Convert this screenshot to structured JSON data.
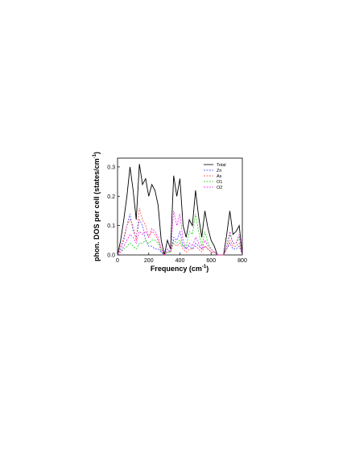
{
  "chart_data": {
    "type": "line",
    "x_label": [
      "Frequency (cm",
      "-1",
      ")"
    ],
    "y_label": [
      "phon. DOS per cell (states/cm",
      "-1",
      ")"
    ],
    "x": [
      0,
      20,
      40,
      60,
      80,
      100,
      120,
      140,
      160,
      180,
      200,
      220,
      240,
      260,
      280,
      300,
      320,
      340,
      360,
      380,
      400,
      420,
      440,
      460,
      480,
      500,
      520,
      540,
      560,
      580,
      600,
      620,
      640,
      660,
      680,
      700,
      720,
      740,
      760,
      780,
      800
    ],
    "series": [
      {
        "name": "Total",
        "color": "#000000",
        "style": "solid",
        "values": [
          0,
          0.05,
          0.12,
          0.2,
          0.3,
          0.22,
          0.12,
          0.31,
          0.24,
          0.26,
          0.2,
          0.24,
          0.22,
          0.17,
          0.05,
          0,
          0.05,
          0.02,
          0.27,
          0.2,
          0.26,
          0.1,
          0.06,
          0.12,
          0.1,
          0.22,
          0.13,
          0.06,
          0.15,
          0.09,
          0.05,
          0.03,
          0,
          0,
          0,
          0.07,
          0.15,
          0.07,
          0.08,
          0.1,
          0
        ]
      },
      {
        "name": "Zn",
        "color": "#3333ff",
        "style": "dashed",
        "values": [
          0,
          0.02,
          0.05,
          0.1,
          0.14,
          0.08,
          0.06,
          0.12,
          0.1,
          0.05,
          0.03,
          0.03,
          0.02,
          0.02,
          0.01,
          0,
          0.02,
          0.01,
          0.06,
          0.05,
          0.08,
          0.03,
          0.02,
          0.03,
          0.02,
          0.04,
          0.03,
          0.02,
          0.03,
          0.02,
          0.01,
          0.01,
          0,
          0,
          0,
          0.02,
          0.04,
          0.02,
          0.02,
          0.03,
          0
        ]
      },
      {
        "name": "As",
        "color": "#ff3333",
        "style": "dashed",
        "values": [
          0,
          0.03,
          0.06,
          0.1,
          0.12,
          0.1,
          0.05,
          0.16,
          0.12,
          0.1,
          0.06,
          0.08,
          0.07,
          0.05,
          0.02,
          0,
          0.01,
          0.01,
          0.04,
          0.03,
          0.04,
          0.02,
          0.01,
          0.02,
          0.02,
          0.03,
          0.02,
          0.01,
          0.03,
          0.02,
          0.01,
          0.01,
          0,
          0,
          0,
          0.02,
          0.05,
          0.03,
          0.03,
          0.04,
          0
        ]
      },
      {
        "name": "O1",
        "color": "#00cc00",
        "style": "dashed",
        "values": [
          0,
          0.01,
          0.02,
          0.03,
          0.04,
          0.03,
          0.02,
          0.04,
          0.04,
          0.05,
          0.04,
          0.05,
          0.05,
          0.04,
          0.01,
          0,
          0.01,
          0.01,
          0.05,
          0.04,
          0.05,
          0.03,
          0.03,
          0.08,
          0.07,
          0.14,
          0.08,
          0.03,
          0.08,
          0.04,
          0.02,
          0.01,
          0,
          0,
          0,
          0.03,
          0.07,
          0.04,
          0.04,
          0.06,
          0
        ]
      },
      {
        "name": "O2",
        "color": "#ee00ee",
        "style": "dashed",
        "values": [
          0,
          0.01,
          0.03,
          0.05,
          0.07,
          0.06,
          0.04,
          0.08,
          0.07,
          0.08,
          0.06,
          0.09,
          0.08,
          0.06,
          0.02,
          0,
          0.02,
          0.01,
          0.15,
          0.1,
          0.14,
          0.05,
          0.02,
          0.04,
          0.03,
          0.06,
          0.04,
          0.02,
          0.05,
          0.03,
          0.02,
          0.01,
          0,
          0,
          0,
          0.03,
          0.08,
          0.04,
          0.04,
          0.07,
          0
        ]
      }
    ],
    "xlim": [
      0,
      800
    ],
    "xticks": [
      0,
      200,
      400,
      600,
      800
    ],
    "ylim": [
      0,
      0.33
    ],
    "yticks": [
      {
        "value": 0,
        "label": "0.0"
      },
      0.1,
      0.2,
      0.3
    ],
    "legend": "upper right"
  }
}
